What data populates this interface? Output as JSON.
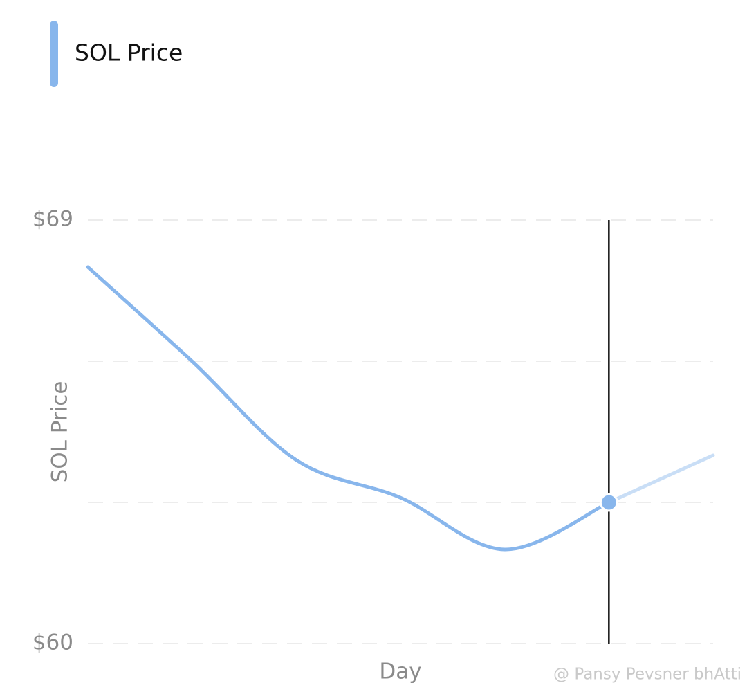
{
  "chart_data": {
    "type": "line",
    "x_label": "Day",
    "y_label": "SOL Price",
    "categories": [
      null,
      null,
      null,
      null,
      null,
      null,
      null
    ],
    "series": [
      {
        "name": "SOL Price",
        "color": "#88b6ec",
        "values": [
          68.0,
          66.0,
          63.9,
          63.1,
          62.0,
          63.0,
          64.0
        ]
      }
    ],
    "ylim": [
      60,
      69
    ],
    "yticks": [
      {
        "value": 60,
        "label": "$60"
      },
      {
        "value": 63,
        "label": null
      },
      {
        "value": 66,
        "label": null
      },
      {
        "value": 69,
        "label": "$69"
      }
    ],
    "grid": true,
    "legend": "top-left",
    "highlight_index": 5,
    "watermark": "@ Pansy Pevsner bhAtti"
  }
}
